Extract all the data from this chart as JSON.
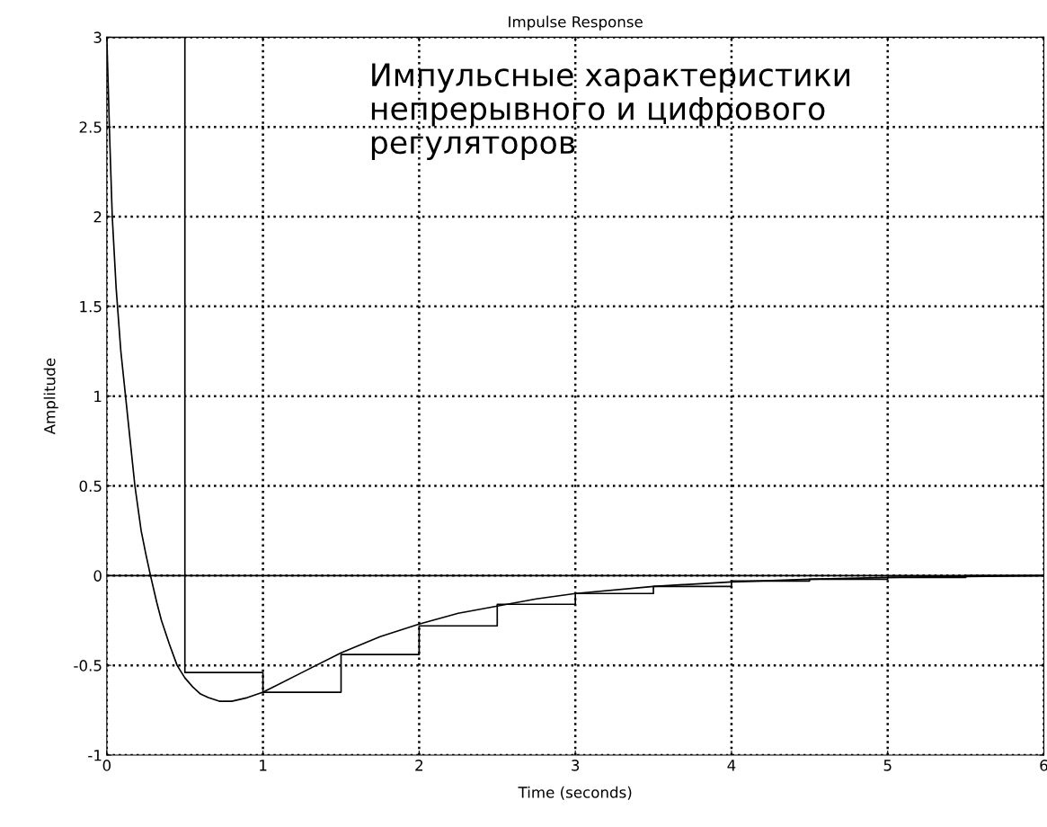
{
  "chart_data": {
    "type": "line",
    "title": "Impulse Response",
    "xlabel": "Time (seconds)",
    "ylabel": "Amplitude",
    "annotations": [
      "Импульсные характеристики\nнепрерывного и цифрового\nрегуляторов"
    ],
    "series": [
      {
        "color": "#000000",
        "x": [
          0,
          0.02,
          0.035,
          0.06,
          0.09,
          0.12,
          0.15,
          0.18,
          0.22,
          0.25,
          0.28,
          0.32,
          0.35,
          0.4,
          0.45,
          0.5,
          0.55,
          0.6,
          0.65,
          0.72,
          0.8,
          0.85,
          0.9,
          1,
          1.25,
          1.5,
          1.75,
          2,
          2.25,
          2.5,
          2.75,
          3,
          3.5,
          4,
          4.5,
          5,
          5.5,
          6
        ],
        "values": [
          3,
          2.4,
          2.0,
          1.6,
          1.25,
          1.0,
          0.75,
          0.5,
          0.25,
          0.12,
          0,
          -0.15,
          -0.25,
          -0.38,
          -0.5,
          -0.57,
          -0.62,
          -0.66,
          -0.68,
          -0.7,
          -0.7,
          -0.69,
          -0.68,
          -0.65,
          -0.54,
          -0.43,
          -0.34,
          -0.27,
          -0.21,
          -0.17,
          -0.13,
          -0.1,
          -0.06,
          -0.035,
          -0.02,
          -0.01,
          -0.005,
          0
        ]
      },
      {
        "type": "step",
        "color": "#000000",
        "x": [
          0,
          0.5,
          1,
          1.5,
          2,
          2.5,
          3,
          3.5,
          4,
          4.5,
          5,
          5.5,
          6
        ],
        "values": [
          3,
          -0.54,
          -0.65,
          -0.44,
          -0.28,
          -0.16,
          -0.1,
          -0.06,
          -0.03,
          -0.02,
          -0.01,
          0,
          0
        ]
      }
    ],
    "ref_lines": [
      {
        "axis": "y",
        "value": 0,
        "color": "#000000",
        "line_style": "solid"
      }
    ],
    "xlim": [
      0,
      6
    ],
    "xticks": [
      0,
      1,
      2,
      3,
      4,
      5,
      6
    ],
    "ylim": [
      -1,
      3
    ],
    "yticks": [
      -1,
      -0.5,
      0,
      0.5,
      1,
      1.5,
      2,
      2.5,
      3
    ],
    "grid": true,
    "legend": false
  }
}
